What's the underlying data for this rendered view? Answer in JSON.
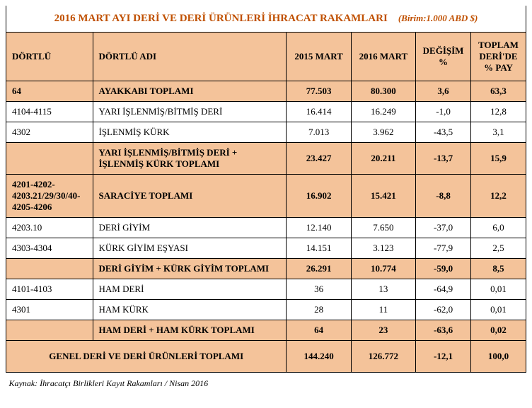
{
  "title": {
    "main": "2016 MART AYI DERİ VE DERİ ÜRÜNLERİ İHRACAT RAKAMLARI",
    "unit": "(Birim:1.000 ABD $)",
    "color": "#c05000"
  },
  "colors": {
    "header_bg": "#f4c39a",
    "border": "#000000",
    "text": "#000000",
    "bg_normal": "#ffffff"
  },
  "columns": {
    "code": "DÖRTLÜ",
    "name": "DÖRTLÜ ADI",
    "y2015": "2015 MART",
    "y2016": "2016 MART",
    "change": "DEĞİŞİM %",
    "share": "TOPLAM DERİ'DE % PAY"
  },
  "rows": [
    {
      "type": "sub",
      "code": "64",
      "name": "AYAKKABI TOPLAMI",
      "v2015": "77.503",
      "v2016": "80.300",
      "chg": "3,6",
      "pay": "63,3"
    },
    {
      "type": "normal",
      "code": "4104-4115",
      "name": "YARI İŞLENMİŞ/BİTMİŞ DERİ",
      "v2015": "16.414",
      "v2016": "16.249",
      "chg": "-1,0",
      "pay": "12,8"
    },
    {
      "type": "normal",
      "code": "4302",
      "name": "İŞLENMİŞ KÜRK",
      "v2015": "7.013",
      "v2016": "3.962",
      "chg": "-43,5",
      "pay": "3,1"
    },
    {
      "type": "sub",
      "code": "",
      "name": "YARI İŞLENMİŞ/BİTMİŞ DERİ + İŞLENMİŞ KÜRK TOPLAMI",
      "v2015": "23.427",
      "v2016": "20.211",
      "chg": "-13,7",
      "pay": "15,9"
    },
    {
      "type": "sub",
      "code": "4201-4202-4203.21/29/30/40-4205-4206",
      "name": "SARACİYE TOPLAMI",
      "v2015": "16.902",
      "v2016": "15.421",
      "chg": "-8,8",
      "pay": "12,2"
    },
    {
      "type": "normal",
      "code": "4203.10",
      "name": "DERİ GİYİM",
      "v2015": "12.140",
      "v2016": "7.650",
      "chg": "-37,0",
      "pay": "6,0"
    },
    {
      "type": "normal",
      "code": "4303-4304",
      "name": "KÜRK GİYİM EŞYASI",
      "v2015": "14.151",
      "v2016": "3.123",
      "chg": "-77,9",
      "pay": "2,5"
    },
    {
      "type": "sub",
      "code": "",
      "name": "DERİ GİYİM + KÜRK GİYİM TOPLAMI",
      "v2015": "26.291",
      "v2016": "10.774",
      "chg": "-59,0",
      "pay": "8,5"
    },
    {
      "type": "normal",
      "code": "4101-4103",
      "name": "HAM  DERİ",
      "v2015": "36",
      "v2016": "13",
      "chg": "-64,9",
      "pay": "0,01"
    },
    {
      "type": "normal",
      "code": "4301",
      "name": "HAM KÜRK",
      "v2015": "28",
      "v2016": "11",
      "chg": "-62,0",
      "pay": "0,01"
    },
    {
      "type": "sub",
      "code": "",
      "name": "HAM  DERİ + HAM KÜRK TOPLAMI",
      "v2015": "64",
      "v2016": "23",
      "chg": "-63,6",
      "pay": "0,02"
    }
  ],
  "grand": {
    "name": "GENEL DERİ VE DERİ ÜRÜNLERİ TOPLAMI",
    "v2015": "144.240",
    "v2016": "126.772",
    "chg": "-12,1",
    "pay": "100,0"
  },
  "source": "Kaynak: İhracatçı Birlikleri Kayıt Rakamları / Nisan 2016"
}
